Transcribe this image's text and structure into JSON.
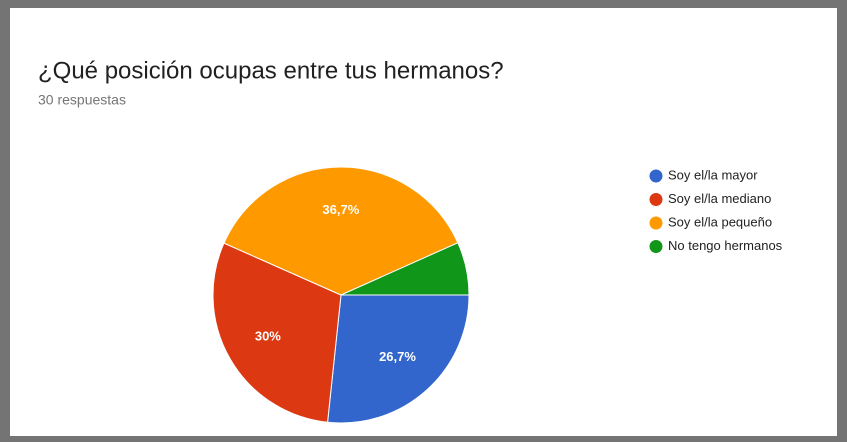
{
  "chart_data": {
    "type": "pie",
    "title": "¿Qué posición ocupas entre tus hermanos?",
    "subtitle": "30 respuestas",
    "categories": [
      "Soy el/la mayor",
      "Soy el/la mediano",
      "Soy el/la pequeño",
      "No tengo hermanos"
    ],
    "values": [
      26.7,
      30,
      36.7,
      6.7
    ],
    "value_labels": [
      "26,7%",
      "30%",
      "36,7%",
      null
    ],
    "colors": [
      "#3366cc",
      "#dc3912",
      "#ff9900",
      "#109618"
    ],
    "legend": "right"
  }
}
